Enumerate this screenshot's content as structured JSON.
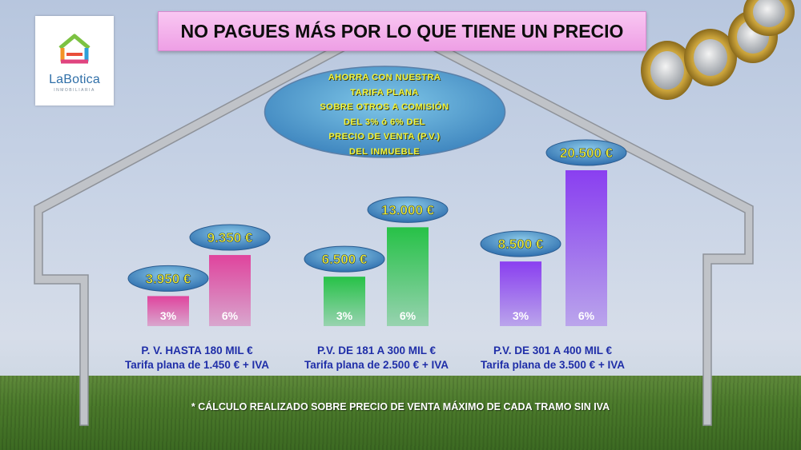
{
  "header": {
    "title": "NO PAGUES MÁS POR LO QUE TIENE UN PRECIO"
  },
  "logo": {
    "name": "LaBotica",
    "tagline": "INMOBILIARIA"
  },
  "callout": {
    "lines": [
      "AHORRA CON NUESTRA",
      "TARIFA PLANA",
      "SOBRE OTROS A COMISIÓN",
      "DEL 3% ó 6% DEL",
      "PRECIO DE VENTA (P.V.)",
      "DEL INMUEBLE"
    ]
  },
  "chart_data": {
    "type": "bar",
    "unit": "€",
    "groups": [
      {
        "label": "P. V. HASTA 180 MIL €",
        "flat_rate": "Tarifa plana de 1.450 € + IVA",
        "color": "#e0449d",
        "bars": [
          {
            "rate": "3%",
            "value": 3950,
            "label": "3.950 €"
          },
          {
            "rate": "6%",
            "value": 9350,
            "label": "9.350 €"
          }
        ]
      },
      {
        "label": "P.V. DE 181 A 300 MIL €",
        "flat_rate": "Tarifa plana de 2.500 € + IVA",
        "color": "#27c247",
        "bars": [
          {
            "rate": "3%",
            "value": 6500,
            "label": "6.500 €"
          },
          {
            "rate": "6%",
            "value": 13000,
            "label": "13.000 €"
          }
        ]
      },
      {
        "label": "P.V. DE 301 A 400 MIL €",
        "flat_rate": "Tarifa plana de 3.500 € + IVA",
        "color": "#8a3ff0",
        "bars": [
          {
            "rate": "3%",
            "value": 8500,
            "label": "8.500 €"
          },
          {
            "rate": "6%",
            "value": 20500,
            "label": "20.500 €"
          }
        ]
      }
    ],
    "label_color": "#1f2ea8",
    "value_label_color": "#f4f02e"
  },
  "footnote": "* CÁLCULO REALIZADO SOBRE PRECIO DE VENTA MÁXIMO DE CADA TRAMO SIN IVA"
}
